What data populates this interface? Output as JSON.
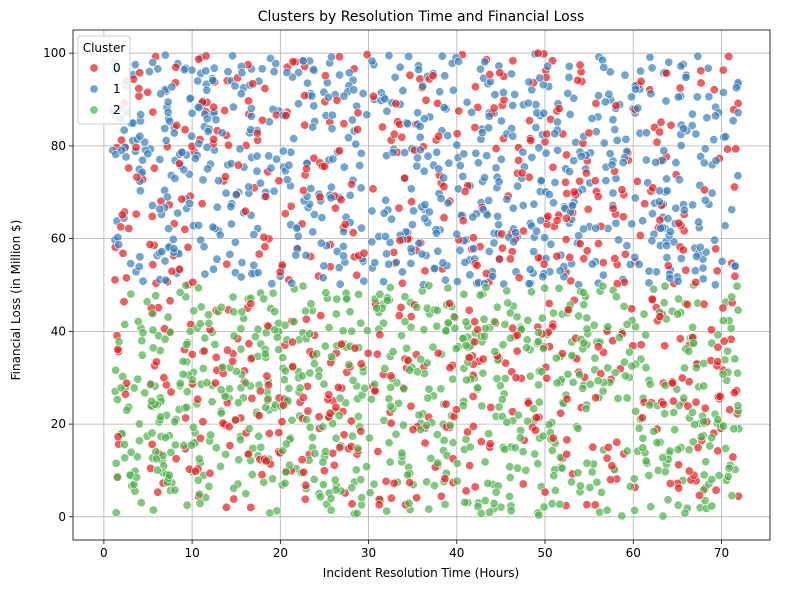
{
  "chart_data": {
    "type": "scatter",
    "title": "Clusters by Resolution Time and Financial Loss",
    "xlabel": "Incident Resolution Time (Hours)",
    "ylabel": "Financial Loss (in Million $)",
    "xlim": [
      -3.5,
      75.5
    ],
    "ylim": [
      -5,
      105
    ],
    "xticks": [
      0,
      10,
      20,
      30,
      40,
      50,
      60,
      70
    ],
    "yticks": [
      0,
      20,
      40,
      60,
      80,
      100
    ],
    "grid": true,
    "legend": {
      "title": "Cluster",
      "position": "top-left"
    },
    "series": [
      {
        "name": "0",
        "color": "#e41a1c",
        "x_range": [
          1,
          72
        ],
        "y_range": [
          0,
          100
        ]
      },
      {
        "name": "1",
        "color": "#377eb8",
        "x_range": [
          1,
          72
        ],
        "y_range": [
          50,
          100
        ]
      },
      {
        "name": "2",
        "color": "#4daf4a",
        "x_range": [
          1,
          72
        ],
        "y_range": [
          0,
          50
        ]
      }
    ]
  }
}
